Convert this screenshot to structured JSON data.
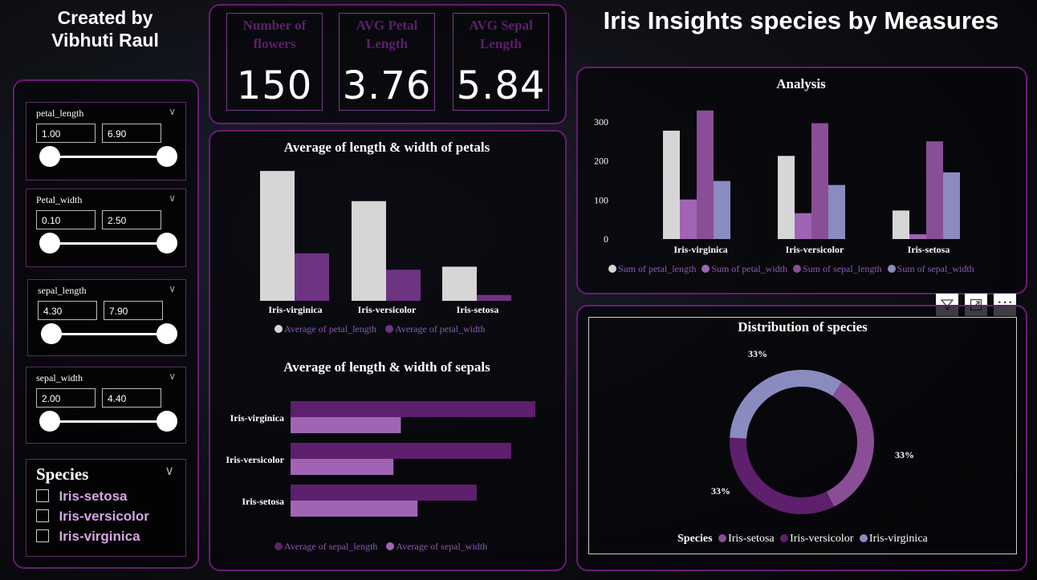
{
  "author": {
    "line1": "Created by",
    "line2": "Vibhuti Raul"
  },
  "title": "Iris Insights species by Measures",
  "slicers": [
    {
      "label": "petal_length",
      "min": "1.00",
      "max": "6.90"
    },
    {
      "label": "Petal_width",
      "min": "0.10",
      "max": "2.50"
    },
    {
      "label": "sepal_length",
      "min": "4.30",
      "max": "7.90"
    },
    {
      "label": "sepal_width",
      "min": "2.00",
      "max": "4.40"
    }
  ],
  "species_slicer": {
    "title": "Species",
    "items": [
      "Iris-setosa",
      "Iris-versicolor",
      "Iris-virginica"
    ]
  },
  "kpis": [
    {
      "title": "Number of flowers",
      "value": "150"
    },
    {
      "title": "AVG Petal Length",
      "value": "3.76"
    },
    {
      "title": "AVG Sepal Length",
      "value": "5.84"
    }
  ],
  "colors": {
    "white_bar": "#d6d6d6",
    "purple": "#5e1f6c",
    "light_purple": "#a164b4",
    "mid_purple": "#8a4e96",
    "blue_purple": "#8a8cc0"
  },
  "toolbar": {
    "filter_icon": "filter-icon",
    "focus_icon": "focus-mode-icon",
    "more_icon": "more-options-icon"
  },
  "chart_data": [
    {
      "type": "bar",
      "title": "Average of length & width of petals",
      "categories": [
        "Iris-virginica",
        "Iris-versicolor",
        "Iris-setosa"
      ],
      "series": [
        {
          "name": "Average of petal_length",
          "values": [
            5.55,
            4.26,
            1.46
          ]
        },
        {
          "name": "Average of petal_width",
          "values": [
            2.03,
            1.33,
            0.25
          ]
        }
      ],
      "ylim": [
        0,
        6
      ]
    },
    {
      "type": "bar",
      "orientation": "horizontal",
      "title": "Average of length & width of sepals",
      "categories": [
        "Iris-virginica",
        "Iris-versicolor",
        "Iris-setosa"
      ],
      "series": [
        {
          "name": "Average of sepal_length",
          "values": [
            6.59,
            5.94,
            5.01
          ]
        },
        {
          "name": "Average of sepal_width",
          "values": [
            2.97,
            2.77,
            3.42
          ]
        }
      ],
      "xlim": [
        0,
        7
      ]
    },
    {
      "type": "bar",
      "title": "Analysis",
      "categories": [
        "Iris-virginica",
        "Iris-versicolor",
        "Iris-setosa"
      ],
      "series": [
        {
          "name": "Sum of petal_length",
          "values": [
            277.6,
            213.0,
            73.2
          ]
        },
        {
          "name": "Sum of petal_width",
          "values": [
            101.3,
            66.3,
            12.2
          ]
        },
        {
          "name": "Sum of sepal_length",
          "values": [
            329.4,
            296.8,
            250.3
          ]
        },
        {
          "name": "Sum of sepal_width",
          "values": [
            148.7,
            138.5,
            170.9
          ]
        }
      ],
      "yticks": [
        0,
        100,
        200,
        300
      ],
      "ylim": [
        0,
        340
      ]
    },
    {
      "type": "pie",
      "donut": true,
      "title": "Distribution of species",
      "legend_title": "Species",
      "labels": [
        "Iris-setosa",
        "Iris-versicolor",
        "Iris-virginica"
      ],
      "values": [
        33.33,
        33.33,
        33.33
      ],
      "data_labels": [
        "33%",
        "33%",
        "33%"
      ]
    }
  ]
}
